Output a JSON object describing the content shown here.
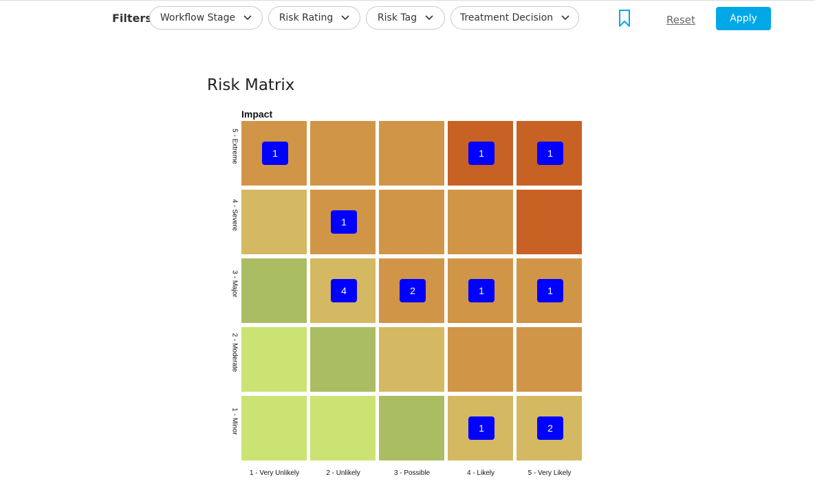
{
  "filters": {
    "label": "Filters",
    "dropdowns": [
      {
        "label": "Workflow Stage"
      },
      {
        "label": "Risk Rating"
      },
      {
        "label": "Risk Tag"
      },
      {
        "label": "Treatment Decision"
      }
    ],
    "bookmark_icon": "bookmark-icon",
    "reset_label": "Reset",
    "apply_label": "Apply",
    "accent_color": "#00a8e8",
    "badge_color": "#0000ff"
  },
  "matrix": {
    "title": "Risk Matrix",
    "y_axis_title": "Impact",
    "rows": [
      "5 - Extreme",
      "4 - Severe",
      "3 - Major",
      "2 - Moderate",
      "1 - Minor"
    ],
    "columns": [
      "1 - Very Unlikely",
      "2 - Unlikely",
      "3 - Possible",
      "4 - Likely",
      "5 - Very Likely"
    ],
    "colors": {
      "low": "#cbe372",
      "low_medium": "#aabd63",
      "medium": "#d4b862",
      "high": "#d19548",
      "extreme": "#c86124"
    },
    "cells": [
      [
        {
          "level": "high",
          "count": "1"
        },
        {
          "level": "high",
          "count": ""
        },
        {
          "level": "high",
          "count": ""
        },
        {
          "level": "extreme",
          "count": "1"
        },
        {
          "level": "extreme",
          "count": "1"
        }
      ],
      [
        {
          "level": "medium",
          "count": ""
        },
        {
          "level": "high",
          "count": "1"
        },
        {
          "level": "high",
          "count": ""
        },
        {
          "level": "high",
          "count": ""
        },
        {
          "level": "extreme",
          "count": ""
        }
      ],
      [
        {
          "level": "low_medium",
          "count": ""
        },
        {
          "level": "medium",
          "count": "4"
        },
        {
          "level": "high",
          "count": "2"
        },
        {
          "level": "high",
          "count": "1"
        },
        {
          "level": "high",
          "count": "1"
        }
      ],
      [
        {
          "level": "low",
          "count": ""
        },
        {
          "level": "low_medium",
          "count": ""
        },
        {
          "level": "medium",
          "count": ""
        },
        {
          "level": "high",
          "count": ""
        },
        {
          "level": "high",
          "count": ""
        }
      ],
      [
        {
          "level": "low",
          "count": ""
        },
        {
          "level": "low",
          "count": ""
        },
        {
          "level": "low_medium",
          "count": ""
        },
        {
          "level": "medium",
          "count": "1"
        },
        {
          "level": "medium",
          "count": "2"
        }
      ]
    ]
  }
}
